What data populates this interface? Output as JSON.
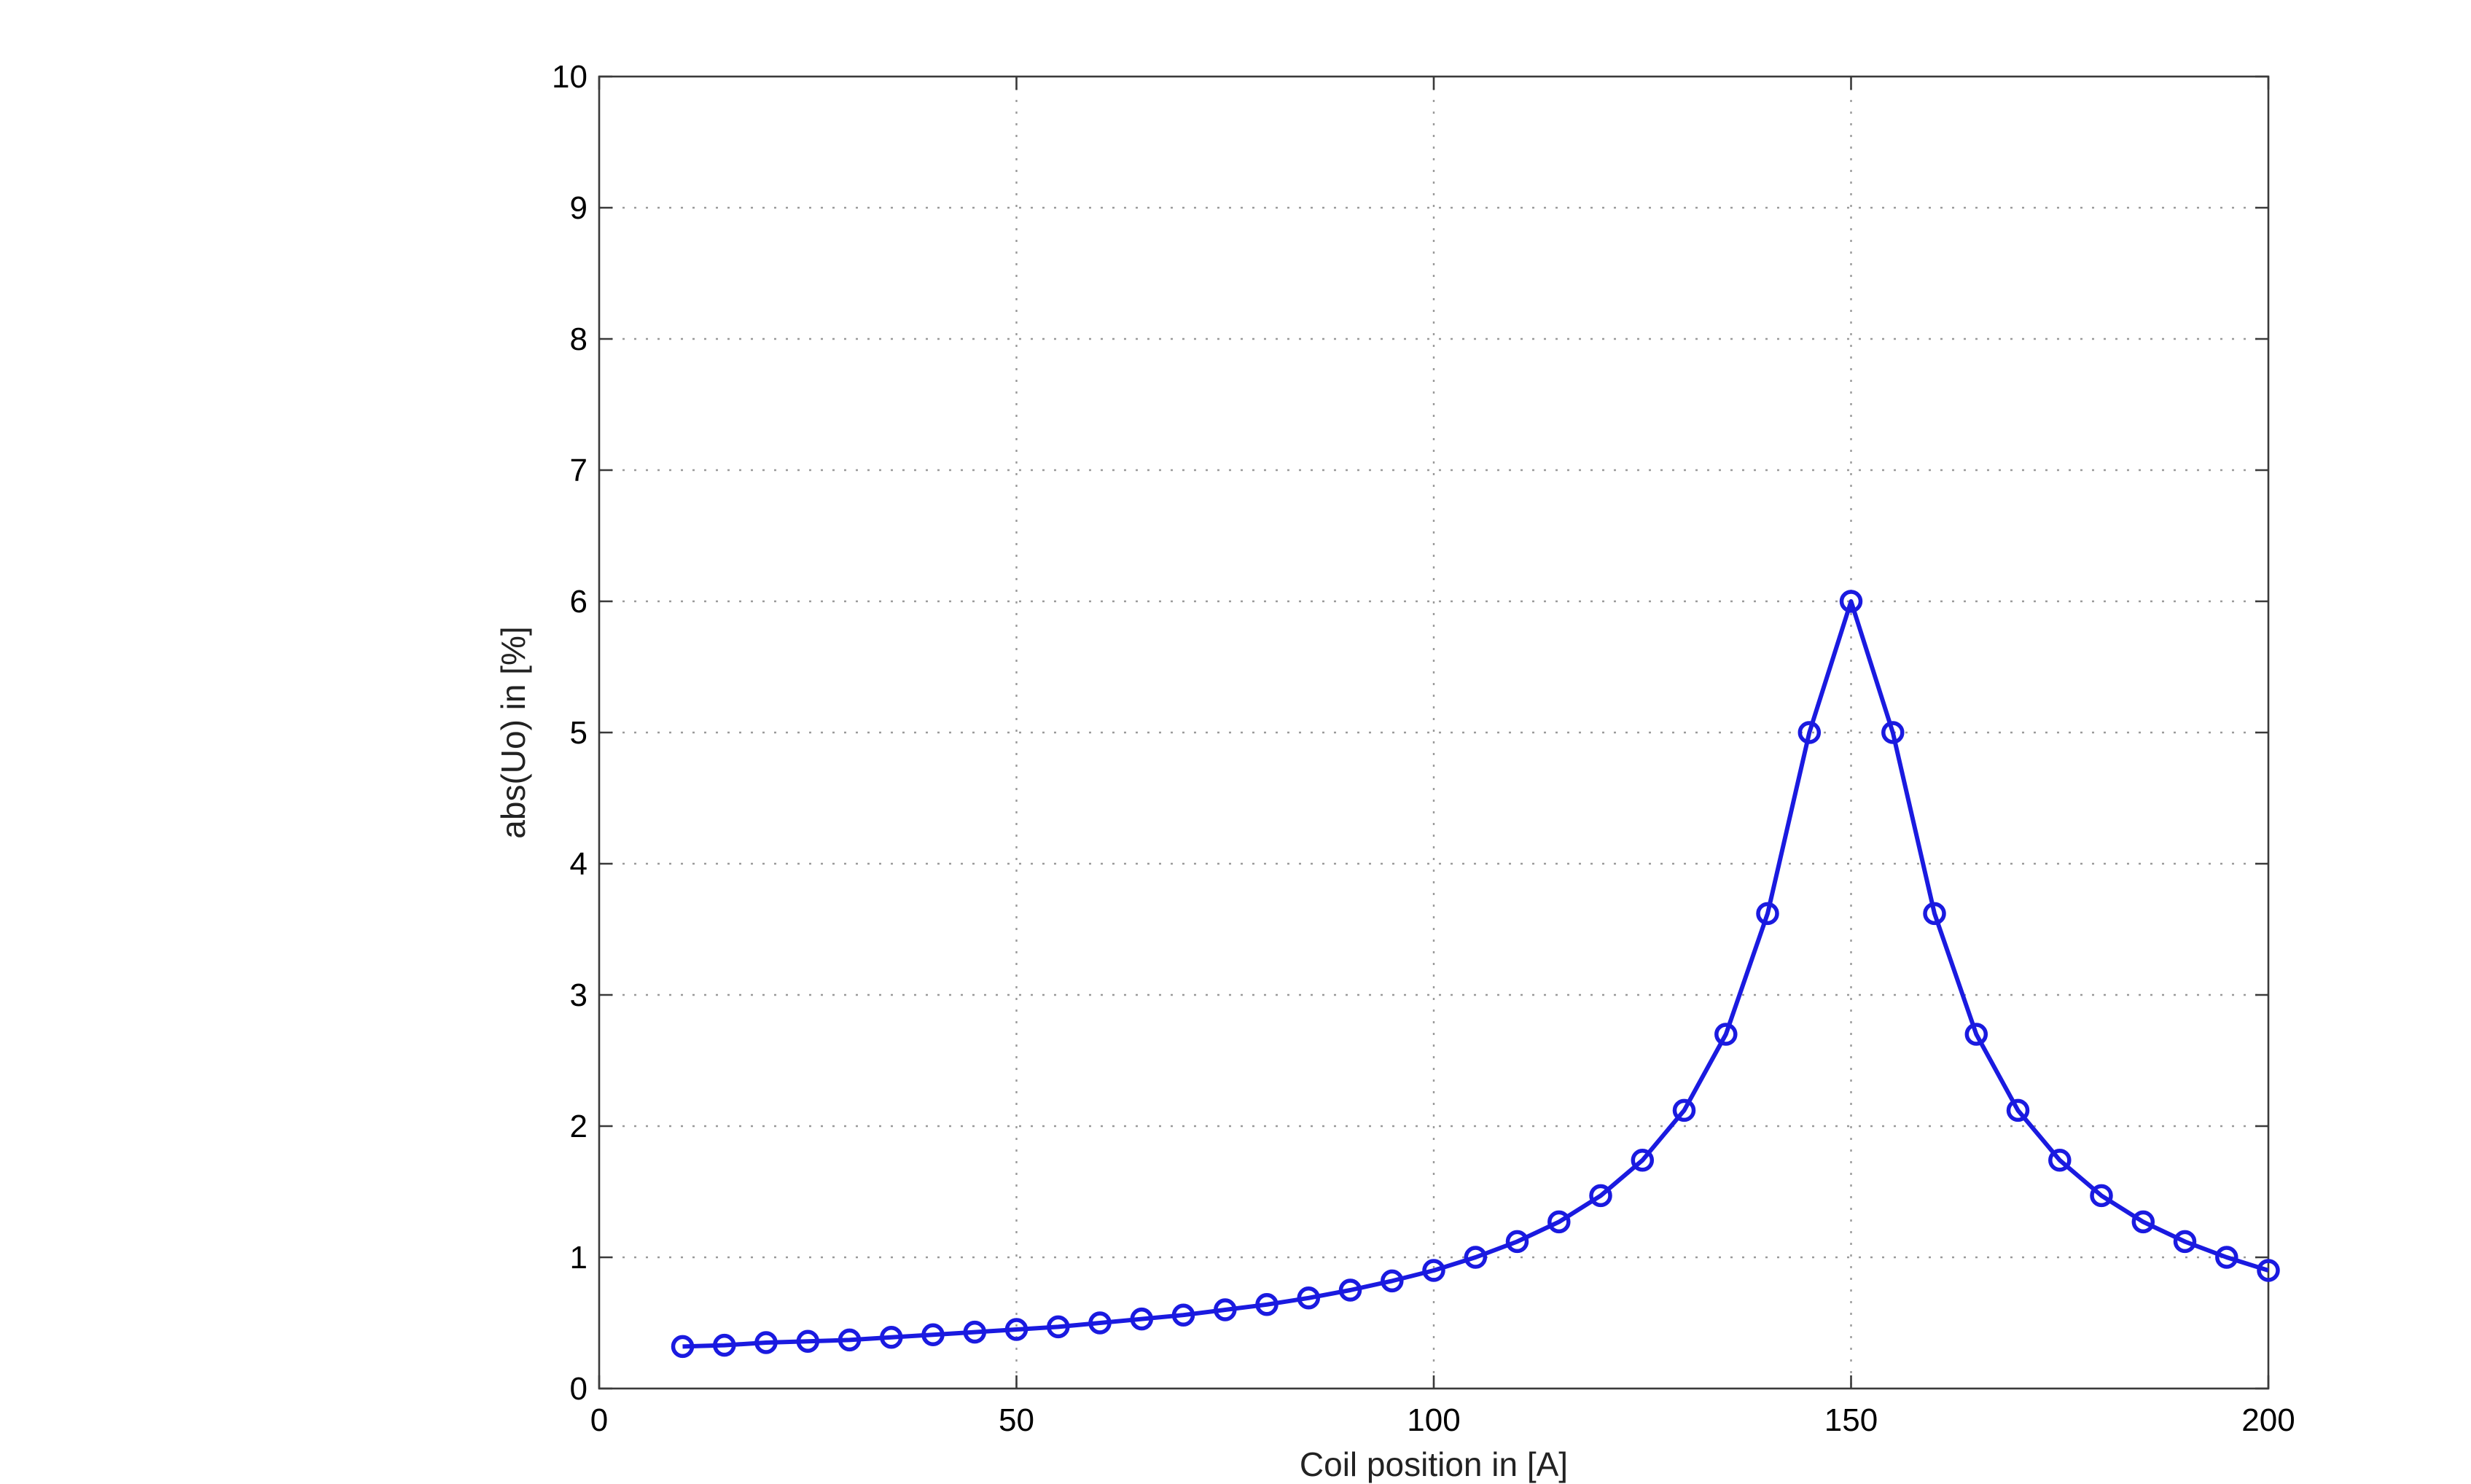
{
  "chart_data": {
    "type": "line",
    "title": "",
    "xlabel": "Coil position in [A]",
    "ylabel": "abs(Uo) in [%]",
    "xlim": [
      0,
      200
    ],
    "ylim": [
      0,
      10
    ],
    "x_ticks": [
      "0",
      "50",
      "100",
      "150",
      "200"
    ],
    "y_ticks": [
      "0",
      "1",
      "2",
      "3",
      "4",
      "5",
      "6",
      "7",
      "8",
      "9",
      "10"
    ],
    "grid": true,
    "marker": "circle",
    "line_color": "#1a1ae0",
    "series": [
      {
        "x": [
          10,
          15,
          20,
          25,
          30,
          35,
          40,
          45,
          50,
          55,
          60,
          65,
          70,
          75,
          80,
          85,
          90,
          95,
          100,
          105,
          110,
          115,
          120,
          125,
          130,
          135,
          140,
          145,
          150,
          155,
          160,
          165,
          170,
          175,
          180,
          185,
          190,
          195,
          200
        ],
        "values": [
          0.32,
          0.33,
          0.35,
          0.36,
          0.37,
          0.39,
          0.41,
          0.43,
          0.45,
          0.47,
          0.5,
          0.53,
          0.56,
          0.6,
          0.64,
          0.69,
          0.75,
          0.82,
          0.9,
          1.0,
          1.12,
          1.27,
          1.47,
          1.74,
          2.12,
          2.7,
          3.62,
          5.0,
          6.0,
          5.0,
          3.62,
          2.7,
          2.12,
          1.74,
          1.47,
          1.27,
          1.12,
          1.0,
          0.9
        ]
      }
    ]
  }
}
